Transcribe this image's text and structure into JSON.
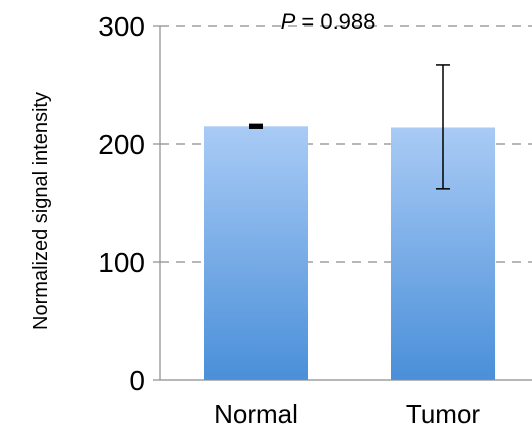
{
  "chart_data": {
    "type": "bar",
    "categories": [
      "Normal",
      "Tumor"
    ],
    "values": [
      215,
      214
    ],
    "error_low": [
      214,
      162
    ],
    "error_high": [
      216,
      267
    ],
    "ylabel": "Normalized signal intensity",
    "xlabel": "",
    "ylim": [
      0,
      300
    ],
    "yticks": [
      "0",
      "100",
      "200",
      "300"
    ],
    "grid": true,
    "annotation": {
      "p_symbol": "P",
      "p_text": " = 0.988"
    },
    "colors": {
      "bar_top": "#a9cbf5",
      "bar_bottom": "#4a8fd9",
      "grid": "#8c8c8c",
      "axis": "#8c8c8c",
      "error": "#000000"
    }
  }
}
